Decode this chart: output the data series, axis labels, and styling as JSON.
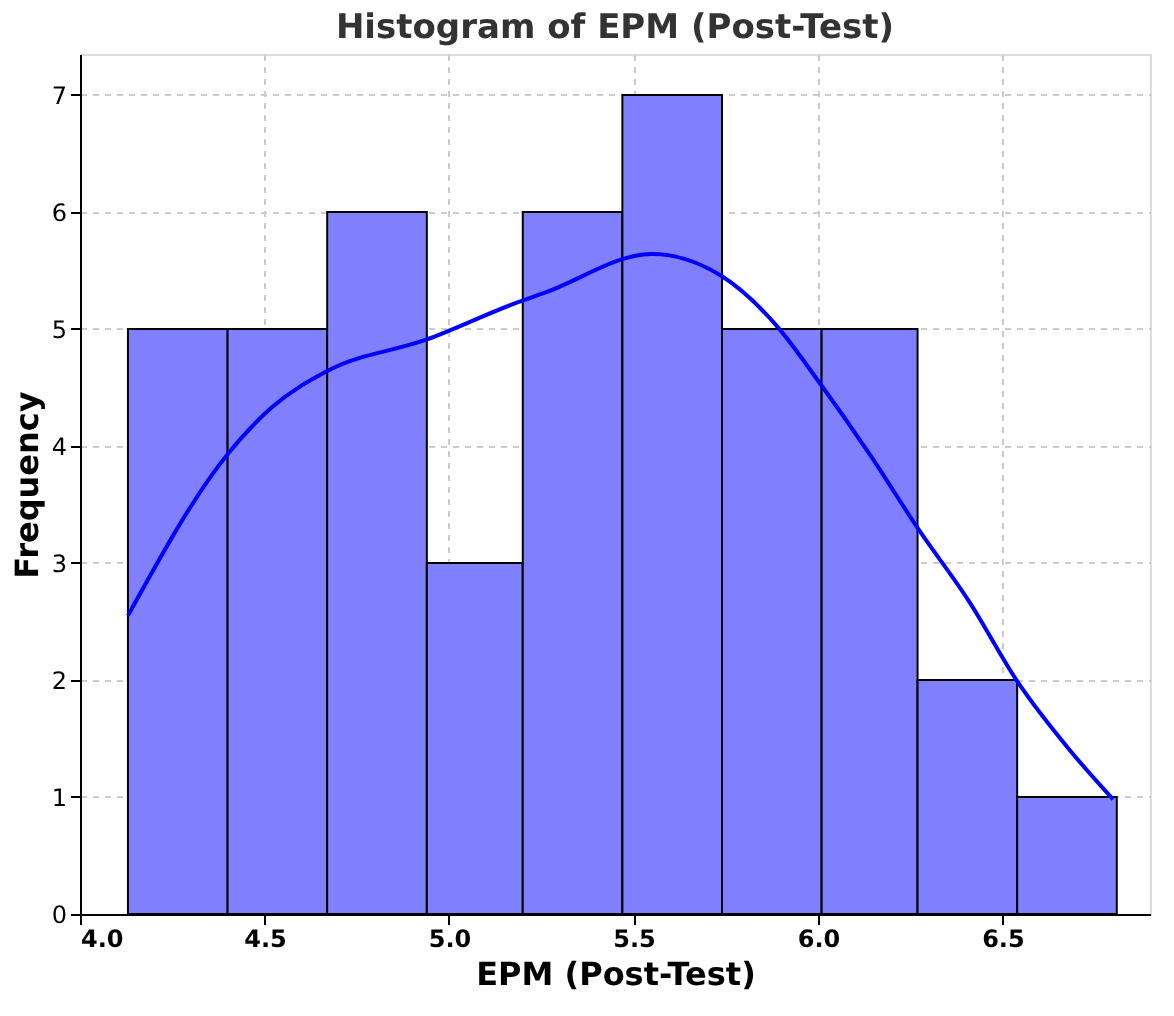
{
  "chart_data": {
    "type": "histogram",
    "title": "Histogram of EPM (Post-Test)",
    "xlabel": "EPM (Post-Test)",
    "ylabel": "Frequency",
    "bins": [
      4.13,
      4.4,
      4.67,
      4.94,
      5.2,
      5.47,
      5.74,
      6.01,
      6.27,
      6.54,
      6.81
    ],
    "values": [
      5,
      5,
      6,
      3,
      6,
      7,
      5,
      5,
      2,
      1
    ],
    "color": "#8080ff",
    "series": [
      {
        "type": "line",
        "color": "#0000ff",
        "x": [
          4.13,
          4.4,
          4.52,
          4.67,
          4.94,
          5.18,
          5.26,
          5.55,
          5.74,
          5.89,
          6.0,
          6.14,
          6.27,
          6.41,
          6.54,
          6.68,
          6.8
        ],
        "values": [
          2.55,
          3.93,
          4.33,
          4.64,
          4.91,
          5.22,
          5.31,
          5.64,
          5.45,
          5.02,
          4.56,
          3.93,
          3.3,
          2.67,
          1.99,
          1.41,
          0.98
        ]
      }
    ],
    "xlim": [
      4.0,
      6.9
    ],
    "xticks": [
      {
        "value": 4,
        "label": "4.0"
      },
      4.5,
      {
        "value": 5,
        "label": "5.0"
      },
      5.5,
      {
        "value": 6,
        "label": "6.0"
      },
      6.5
    ],
    "ylim": [
      0,
      7.35
    ],
    "yticks": [
      0,
      1,
      2,
      3,
      4,
      5,
      6,
      7
    ],
    "grid": true
  }
}
